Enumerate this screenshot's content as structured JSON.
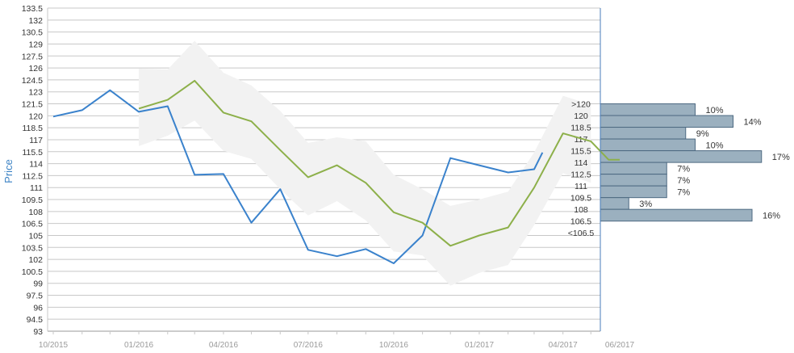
{
  "chart_data": {
    "type": "line",
    "ylabel": "Price",
    "ylim": [
      93,
      133.5
    ],
    "y_ticks": [
      "133.5",
      "132",
      "130.5",
      "129",
      "127.5",
      "126",
      "124.5",
      "123",
      "121.5",
      "120",
      "118.5",
      "117",
      "115.5",
      "114",
      "112.5",
      "111",
      "109.5",
      "108",
      "106.5",
      "105",
      "103.5",
      "102",
      "100.5",
      "99",
      "97.5",
      "96",
      "94.5",
      "93"
    ],
    "x_ticks": [
      "10/2015",
      "01/2016",
      "04/2016",
      "07/2016",
      "10/2016",
      "01/2017",
      "04/2017",
      "06/2017"
    ],
    "x_range": [
      "2015-10-01",
      "2017-06-01"
    ],
    "grid": true,
    "series": [
      {
        "color": "#3a82cc",
        "points": [
          {
            "x": "2015-10-01",
            "y": 119.9
          },
          {
            "x": "2015-11-01",
            "y": 120.7
          },
          {
            "x": "2015-12-01",
            "y": 123.2
          },
          {
            "x": "2016-01-01",
            "y": 120.5
          },
          {
            "x": "2016-02-01",
            "y": 121.2
          },
          {
            "x": "2016-03-01",
            "y": 112.6
          },
          {
            "x": "2016-04-01",
            "y": 112.7
          },
          {
            "x": "2016-05-01",
            "y": 106.6
          },
          {
            "x": "2016-06-01",
            "y": 110.8
          },
          {
            "x": "2016-07-01",
            "y": 103.2
          },
          {
            "x": "2016-08-01",
            "y": 102.4
          },
          {
            "x": "2016-09-01",
            "y": 103.3
          },
          {
            "x": "2016-10-01",
            "y": 101.5
          },
          {
            "x": "2016-11-01",
            "y": 105.0
          },
          {
            "x": "2016-12-01",
            "y": 114.7
          },
          {
            "x": "2017-01-01",
            "y": 113.8
          },
          {
            "x": "2017-02-01",
            "y": 112.9
          },
          {
            "x": "2017-03-01",
            "y": 113.3
          },
          {
            "x": "2017-03-10",
            "y": 115.4
          }
        ]
      },
      {
        "color": "#8db04a",
        "points": [
          {
            "x": "2016-01-01",
            "y": 120.9
          },
          {
            "x": "2016-02-01",
            "y": 122.0
          },
          {
            "x": "2016-03-01",
            "y": 124.4
          },
          {
            "x": "2016-04-01",
            "y": 120.4
          },
          {
            "x": "2016-05-01",
            "y": 119.3
          },
          {
            "x": "2016-06-01",
            "y": 115.7
          },
          {
            "x": "2016-07-01",
            "y": 112.3
          },
          {
            "x": "2016-08-01",
            "y": 113.8
          },
          {
            "x": "2016-09-01",
            "y": 111.6
          },
          {
            "x": "2016-10-01",
            "y": 107.9
          },
          {
            "x": "2016-11-01",
            "y": 106.6
          },
          {
            "x": "2016-12-01",
            "y": 103.7
          },
          {
            "x": "2017-01-01",
            "y": 105.0
          },
          {
            "x": "2017-02-01",
            "y": 106.0
          },
          {
            "x": "2017-03-01",
            "y": 111.0
          },
          {
            "x": "2017-04-01",
            "y": 117.8
          },
          {
            "x": "2017-05-01",
            "y": 116.8
          },
          {
            "x": "2017-05-20",
            "y": 114.5
          },
          {
            "x": "2017-06-01",
            "y": 114.5
          }
        ]
      }
    ],
    "band": {
      "color": "#f2f2f2",
      "points": [
        {
          "x": "2016-01-01",
          "upper": 125.9,
          "lower": 116.2
        },
        {
          "x": "2016-02-01",
          "upper": 125.8,
          "lower": 117.5
        },
        {
          "x": "2016-03-01",
          "upper": 129.4,
          "lower": 119.4
        },
        {
          "x": "2016-04-01",
          "upper": 125.4,
          "lower": 115.6
        },
        {
          "x": "2016-05-01",
          "upper": 123.8,
          "lower": 114.6
        },
        {
          "x": "2016-06-01",
          "upper": 120.6,
          "lower": 110.8
        },
        {
          "x": "2016-07-01",
          "upper": 116.6,
          "lower": 107.5
        },
        {
          "x": "2016-08-01",
          "upper": 117.3,
          "lower": 109.3
        },
        {
          "x": "2016-09-01",
          "upper": 116.8,
          "lower": 106.9
        },
        {
          "x": "2016-10-01",
          "upper": 112.6,
          "lower": 103.0
        },
        {
          "x": "2016-11-01",
          "upper": 110.8,
          "lower": 102.5
        },
        {
          "x": "2016-12-01",
          "upper": 108.7,
          "lower": 98.7
        },
        {
          "x": "2017-01-01",
          "upper": 109.5,
          "lower": 100.3
        },
        {
          "x": "2017-02-01",
          "upper": 110.5,
          "lower": 101.3
        },
        {
          "x": "2017-03-01",
          "upper": 115.4,
          "lower": 106.3
        },
        {
          "x": "2017-04-01",
          "upper": 122.5,
          "lower": 112.8
        },
        {
          "x": "2017-05-01",
          "upper": 121.4,
          "lower": 111.6
        }
      ]
    },
    "histogram": {
      "color": "#9bb0bf",
      "border": "#4e6a82",
      "bins": [
        {
          "label": ">120",
          "pct": 10,
          "pct_label": "10%"
        },
        {
          "label": "120",
          "pct": 14,
          "pct_label": "14%"
        },
        {
          "label": "118.5",
          "pct": 9,
          "pct_label": "9%"
        },
        {
          "label": "117",
          "pct": 10,
          "pct_label": "10%"
        },
        {
          "label": "115.5",
          "pct": 17,
          "pct_label": "17%"
        },
        {
          "label": "114",
          "pct": 7,
          "pct_label": "7%"
        },
        {
          "label": "112.5",
          "pct": 7,
          "pct_label": "7%"
        },
        {
          "label": "111",
          "pct": 7,
          "pct_label": "7%"
        },
        {
          "label": "109.5",
          "pct": 3,
          "pct_label": "3%"
        },
        {
          "label": "108",
          "pct": 16,
          "pct_label": "16%"
        },
        {
          "label": "106.5",
          "pct": null,
          "pct_label": ""
        },
        {
          "label": "<106.5",
          "pct": null,
          "pct_label": ""
        }
      ]
    }
  }
}
